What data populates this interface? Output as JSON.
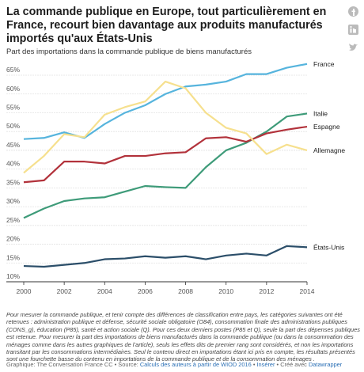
{
  "title": "La commande publique en Europe, tout particulièrement en France, recourt bien davantage aux produits manufacturés importés qu'aux États-Unis",
  "chart_data": {
    "type": "line",
    "subtitle": "Part des importations dans la commande publique de biens manufacturés",
    "x": [
      2000,
      2001,
      2002,
      2003,
      2004,
      2005,
      2006,
      2007,
      2008,
      2009,
      2010,
      2011,
      2012,
      2013,
      2014
    ],
    "series": [
      {
        "name": "France",
        "color": "#56b4dd",
        "values": [
          48,
          48.3,
          49.8,
          48.3,
          52,
          55,
          57,
          60,
          62,
          62.5,
          63.3,
          65.3,
          65.3,
          67,
          68
        ]
      },
      {
        "name": "Italie",
        "color": "#3e9b79",
        "values": [
          27,
          29.5,
          31.5,
          32.2,
          32.5,
          34,
          35.5,
          35.2,
          35,
          40.5,
          45,
          47,
          50,
          54,
          54.8
        ]
      },
      {
        "name": "Espagne",
        "color": "#b2323b",
        "values": [
          36.5,
          37,
          42,
          42,
          41.5,
          43.5,
          43.5,
          44.2,
          44.5,
          48.2,
          48.5,
          47.3,
          49.5,
          50.5,
          51.3
        ]
      },
      {
        "name": "Allemagne",
        "color": "#f6e08e",
        "values": [
          39,
          43.5,
          49.3,
          48.5,
          54.5,
          56.5,
          58,
          63.3,
          61.5,
          55,
          51,
          49.5,
          44,
          46.5,
          45
        ]
      },
      {
        "name": "États-Unis",
        "color": "#2b4e69",
        "values": [
          14.2,
          14,
          14.5,
          15,
          16,
          16.2,
          16.8,
          16.4,
          16.8,
          16,
          17,
          17.5,
          17,
          19.5,
          19.2
        ]
      }
    ],
    "xlim": [
      2000,
      2014
    ],
    "xticks": [
      2000,
      2002,
      2004,
      2006,
      2008,
      2010,
      2012,
      2014
    ],
    "ylim": [
      10,
      70
    ],
    "yticks": [
      {
        "value": 10,
        "label": "10%"
      },
      {
        "value": 15,
        "label": "15%"
      },
      {
        "value": 20,
        "label": "20%"
      },
      {
        "value": 25,
        "label": "25%"
      },
      {
        "value": 30,
        "label": "30%"
      },
      {
        "value": 35,
        "label": "35%"
      },
      {
        "value": 40,
        "label": "40%"
      },
      {
        "value": 45,
        "label": "45%"
      },
      {
        "value": 50,
        "label": "50%"
      },
      {
        "value": 55,
        "label": "55%"
      },
      {
        "value": 60,
        "label": "60%"
      },
      {
        "value": 65,
        "label": "65%"
      }
    ],
    "grid": true
  },
  "notes": "Pour mesurer la commande publique, et tenir compte des différences de classification entre pays, les catégories suivantes ont été retenues : administration publique et défense, sécurité sociale obligatoire (O84), consommation finale des administrations publiques (CONS_g), éducation (P85), santé et action sociale (Q). Pour ces deux derniers postes (P85 et Q), seule la part des dépenses publiques est retenue. Pour mesurer la part des importations de biens manufacturés dans la commande publique (ou dans la consommation des ménages comme dans les autres graphiques de l’article), seuls les effets dits de premier rang sont considérés, et non les importations transitant par les consommations intermédiaires. Seul le contenu direct en importations étant ici pris en compte, les résultats présentés sont une fourchette basse du contenu en importations de la commande publique et de la consommation des ménages .",
  "credits": {
    "graphic": "Graphique: The Conversation France CC • Source:",
    "source": "Calculs des auteurs à partir de WIOD 2016",
    "sep": "•",
    "embed": "Insérer",
    "created": "• Créé avec",
    "tool": "Datawrapper"
  }
}
